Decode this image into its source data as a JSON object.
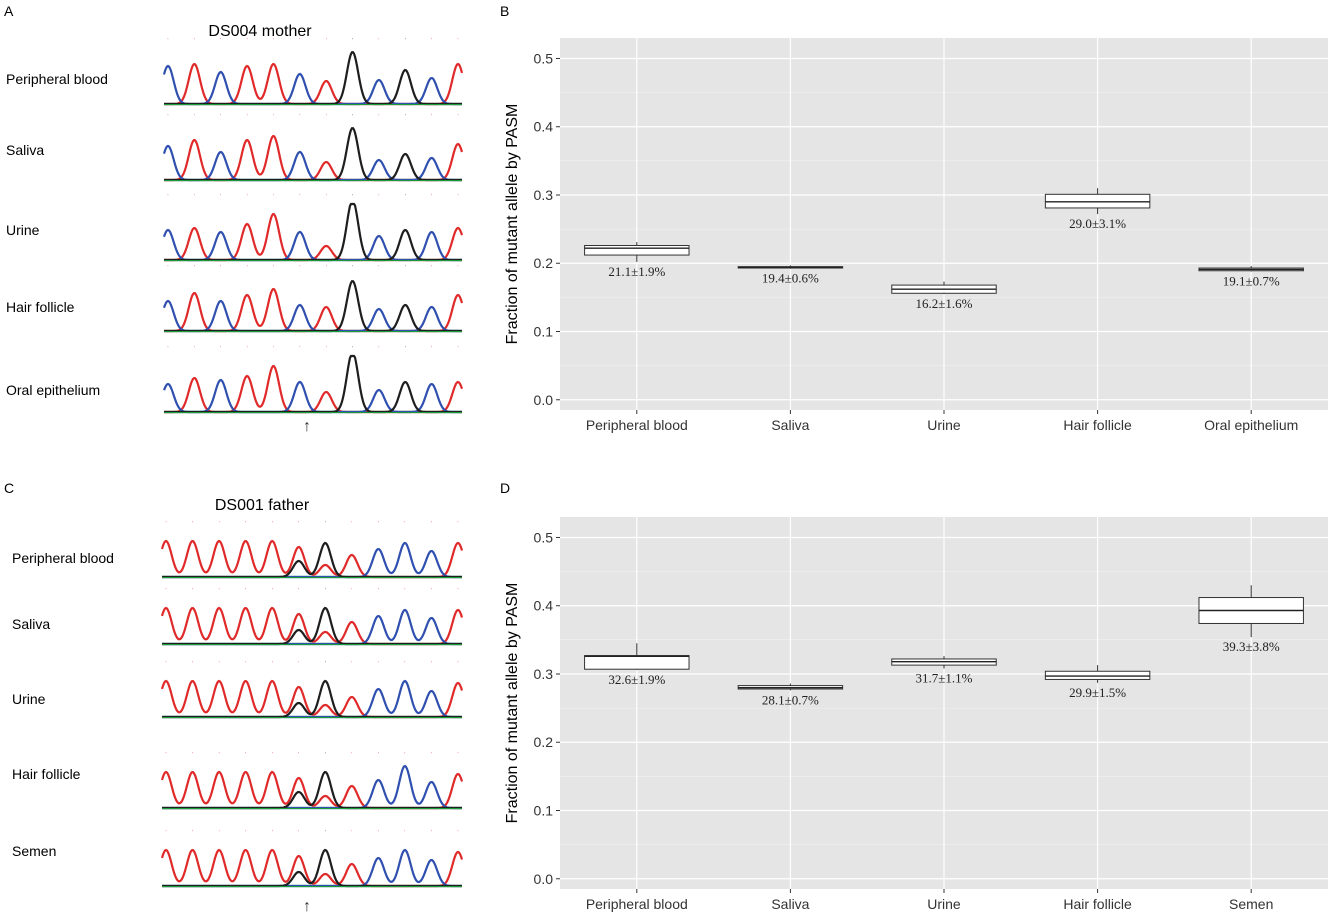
{
  "panels": {
    "A": "A",
    "B": "B",
    "C": "C",
    "D": "D"
  },
  "chromatograms": [
    {
      "id": "A",
      "title": "DS004 mother",
      "samples": [
        "Peripheral blood",
        "Saliva",
        "Urine",
        "Hair follicle",
        "Oral epithelium"
      ],
      "arrow": "↑",
      "peak_colors": {
        "A": "#1e1e1e",
        "C": "#3050b0",
        "G": "#1a9a3a",
        "T": "#e02a2a"
      }
    },
    {
      "id": "C",
      "title": "DS001 father",
      "samples": [
        "Peripheral blood",
        "Saliva",
        "Urine",
        "Hair follicle",
        "Semen"
      ],
      "arrow": "↑",
      "peak_colors": {
        "A": "#1e1e1e",
        "C": "#3050b0",
        "G": "#1a9a3a",
        "T": "#e02a2a"
      }
    }
  ],
  "chart_data": [
    {
      "type": "box",
      "panel": "B",
      "ylabel": "Fraction of mutant allele by PASM",
      "ylim": [
        -0.015,
        0.53
      ],
      "yticks": [
        0.0,
        0.1,
        0.2,
        0.3,
        0.4,
        0.5
      ],
      "ytick_labels": [
        "0.0",
        "0.1",
        "0.2",
        "0.3",
        "0.4",
        "0.5"
      ],
      "grid": true,
      "categories": [
        "Peripheral blood",
        "Saliva",
        "Urine",
        "Hair follicle",
        "Oral epithelium"
      ],
      "boxes": [
        {
          "min": 0.202,
          "q1": 0.212,
          "median": 0.222,
          "q3": 0.226,
          "max": 0.231
        },
        {
          "min": 0.192,
          "q1": 0.193,
          "median": 0.194,
          "q3": 0.195,
          "max": 0.197
        },
        {
          "min": 0.155,
          "q1": 0.156,
          "median": 0.162,
          "q3": 0.168,
          "max": 0.173
        },
        {
          "min": 0.272,
          "q1": 0.281,
          "median": 0.29,
          "q3": 0.301,
          "max": 0.31
        },
        {
          "min": 0.188,
          "q1": 0.189,
          "median": 0.191,
          "q3": 0.193,
          "max": 0.196
        }
      ],
      "annotations": [
        "21.1±1.9%",
        "19.4±0.6%",
        "16.2±1.6%",
        "29.0±3.1%",
        "19.1±0.7%"
      ]
    },
    {
      "type": "box",
      "panel": "D",
      "ylabel": "Fraction of mutant allele by PASM",
      "ylim": [
        -0.015,
        0.53
      ],
      "yticks": [
        0.0,
        0.1,
        0.2,
        0.3,
        0.4,
        0.5
      ],
      "ytick_labels": [
        "0.0",
        "0.1",
        "0.2",
        "0.3",
        "0.4",
        "0.5"
      ],
      "grid": true,
      "categories": [
        "Peripheral blood",
        "Saliva",
        "Urine",
        "Hair follicle",
        "Semen"
      ],
      "boxes": [
        {
          "min": 0.306,
          "q1": 0.307,
          "median": 0.326,
          "q3": 0.327,
          "max": 0.345
        },
        {
          "min": 0.276,
          "q1": 0.278,
          "median": 0.28,
          "q3": 0.283,
          "max": 0.286
        },
        {
          "min": 0.308,
          "q1": 0.313,
          "median": 0.318,
          "q3": 0.322,
          "max": 0.326
        },
        {
          "min": 0.287,
          "q1": 0.292,
          "median": 0.297,
          "q3": 0.304,
          "max": 0.313
        },
        {
          "min": 0.354,
          "q1": 0.374,
          "median": 0.393,
          "q3": 0.412,
          "max": 0.43
        }
      ],
      "annotations": [
        "32.6±1.9%",
        "28.1±0.7%",
        "31.7±1.1%",
        "29.9±1.5%",
        "39.3±3.8%"
      ]
    }
  ]
}
